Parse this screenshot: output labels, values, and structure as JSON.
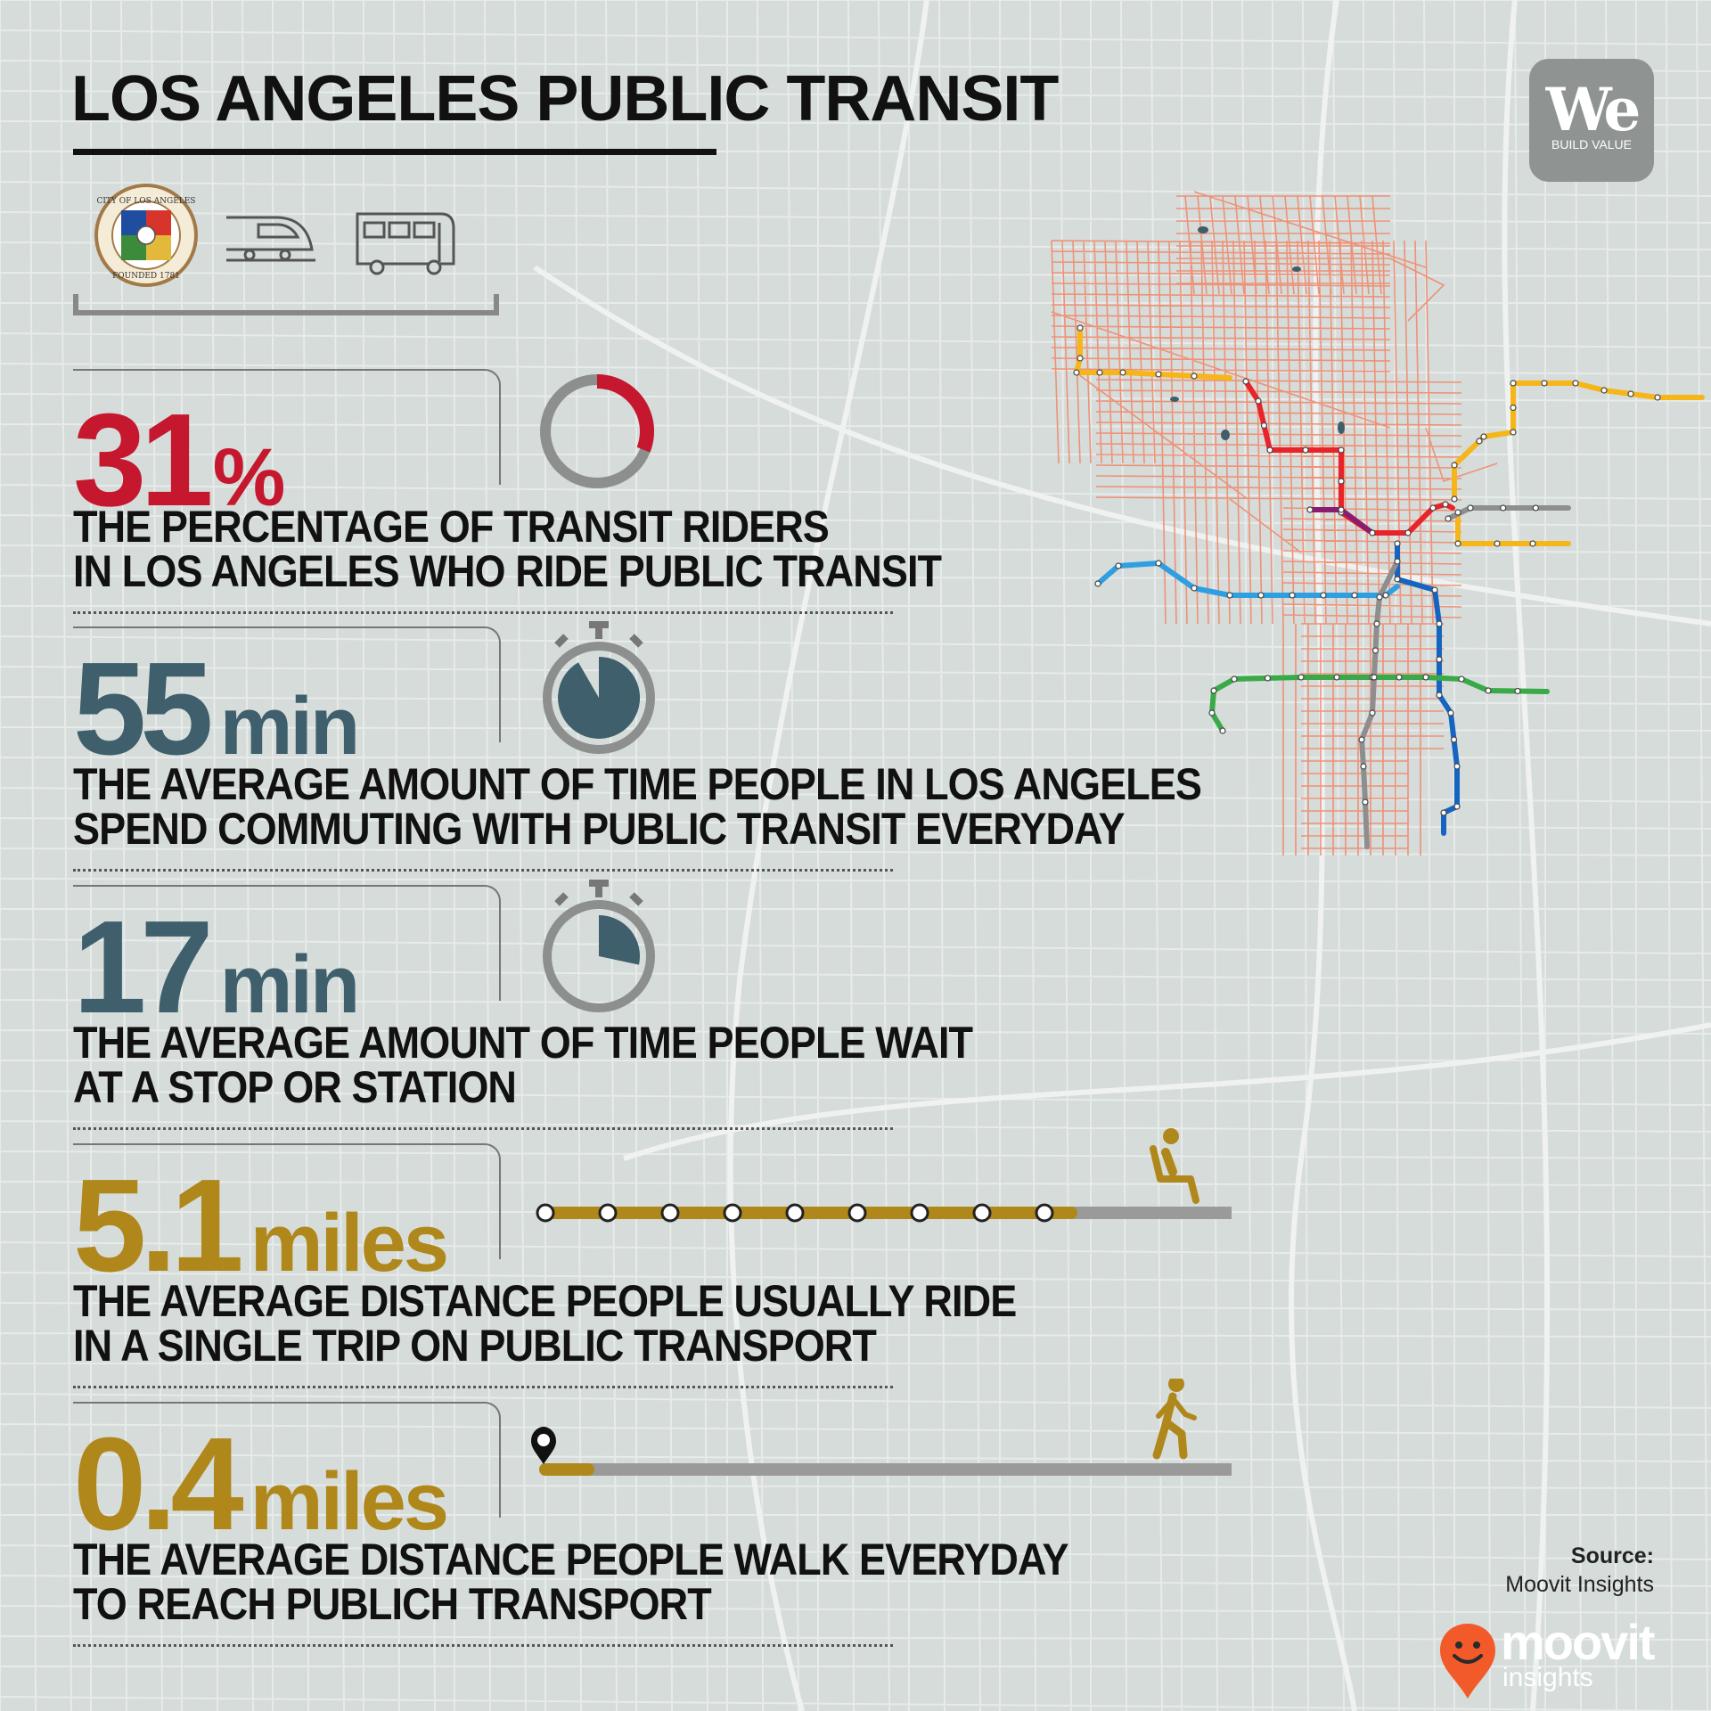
{
  "title": "LOS ANGELES PUBLIC TRANSIT",
  "logo": {
    "word": "We",
    "tagline": "BUILD VALUE"
  },
  "city_seal": {
    "ring_text": "CITY OF LOS ANGELES",
    "founded": "FOUNDED 1781"
  },
  "header_icons": [
    "city-seal",
    "train-icon",
    "bus-icon"
  ],
  "stats": [
    {
      "value": "31",
      "unit": "%",
      "description": [
        "THE PERCENTAGE OF TRANSIT RIDERS",
        "IN LOS ANGELES WHO RIDE PUBLIC TRANSIT"
      ],
      "color": "#c5182f",
      "graphic": "donut",
      "fraction": 0.31
    },
    {
      "value": "55",
      "unit": "min",
      "description": [
        "THE AVERAGE AMOUNT OF TIME PEOPLE IN LOS ANGELES",
        "SPEND COMMUTING WITH PUBLIC TRANSIT EVERYDAY"
      ],
      "color": "#3e5f6b",
      "graphic": "stopwatch",
      "minutes": 55
    },
    {
      "value": "17",
      "unit": "min",
      "description": [
        "THE AVERAGE AMOUNT OF TIME PEOPLE WAIT",
        "AT A STOP OR STATION"
      ],
      "color": "#3e5f6b",
      "graphic": "stopwatch",
      "minutes": 17
    },
    {
      "value": "5.1",
      "unit": "miles",
      "description": [
        "THE AVERAGE DISTANCE PEOPLE USUALLY RIDE",
        "IN A SINGLE TRIP ON PUBLIC TRANSPORT"
      ],
      "color": "#b0871a",
      "graphic": "ride-line",
      "icon": "seated-passenger-icon"
    },
    {
      "value": "0.4",
      "unit": "miles",
      "description": [
        "THE AVERAGE DISTANCE PEOPLE WALK EVERYDAY",
        "TO REACH PUBLICH TRANSPORT"
      ],
      "color": "#b0871a",
      "graphic": "walk-line",
      "icon": "walking-person-icon"
    }
  ],
  "source": {
    "label": "Source:",
    "name": "Moovit Insights"
  },
  "moovit": {
    "name": "moovit",
    "sub": "insights",
    "color": "#f25a29"
  },
  "transit_line_colors": [
    "#e8232a",
    "#f6b619",
    "#2e9fe0",
    "#1565c0",
    "#3aaa49",
    "#8e8e8e",
    "#8b1d6e"
  ],
  "bus_network_color": "#f0896b"
}
